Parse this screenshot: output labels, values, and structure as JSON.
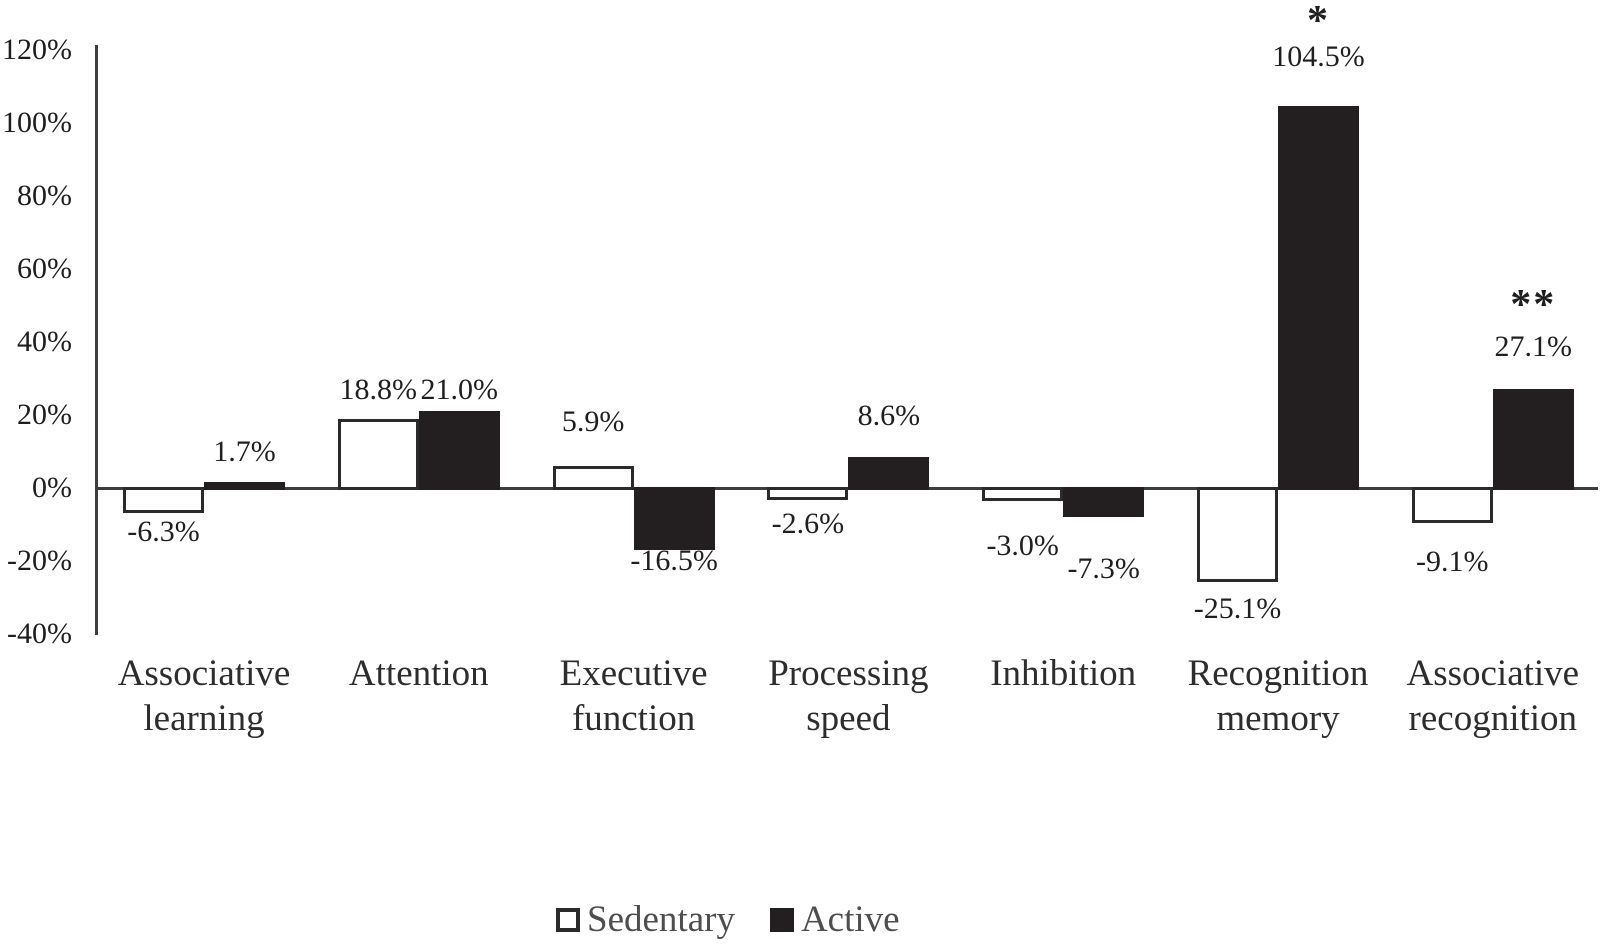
{
  "chart_data": {
    "type": "bar",
    "title": "",
    "xlabel": "",
    "ylabel": "",
    "categories": [
      "Associative learning",
      "Attention",
      "Executive function",
      "Processing speed",
      "Inhibition",
      "Recognition memory",
      "Associative recognition"
    ],
    "series": [
      {
        "name": "Sedentary",
        "fill": "#ffffff",
        "outline": "#2b2b2b",
        "values": [
          -6.3,
          18.8,
          5.9,
          -2.6,
          -3.0,
          -25.1,
          -9.1
        ],
        "labels": [
          "-6.3%",
          "18.8%",
          "5.9%",
          "-2.6%",
          "-3.0%",
          "-25.1%",
          "-9.1%"
        ]
      },
      {
        "name": "Active",
        "fill": "#231f20",
        "outline": "#231f20",
        "values": [
          1.7,
          21.0,
          -16.5,
          8.6,
          -7.3,
          104.5,
          27.1
        ],
        "labels": [
          "1.7%",
          "21.0%",
          "-16.5%",
          "8.6%",
          "-7.3%",
          "104.5%",
          "27.1%"
        ]
      }
    ],
    "ylim": [
      -40,
      120
    ],
    "ytick_step": 20,
    "ytick_labels": [
      "120%",
      "100%",
      "80%",
      "60%",
      "40%",
      "20%",
      "0%",
      "-20%",
      "-40%"
    ],
    "grid": false,
    "legend_position": "bottom",
    "legend_entries": [
      "Sedentary",
      "Active"
    ],
    "annotations": [
      {
        "text": "*",
        "category_index": 5,
        "series": "Active"
      },
      {
        "text": "**",
        "category_index": 6,
        "series": "Active"
      }
    ]
  },
  "colors": {
    "bar_active": "#231f20",
    "bar_sedentary": "#ffffff",
    "bar_outline": "#2b2b2b",
    "axis_line": "#3d3d3d",
    "tick_text": "#1e1e1e",
    "category_text": "#2d2d2d",
    "legend_text": "#4e4e4e",
    "background": "#ffffff"
  }
}
